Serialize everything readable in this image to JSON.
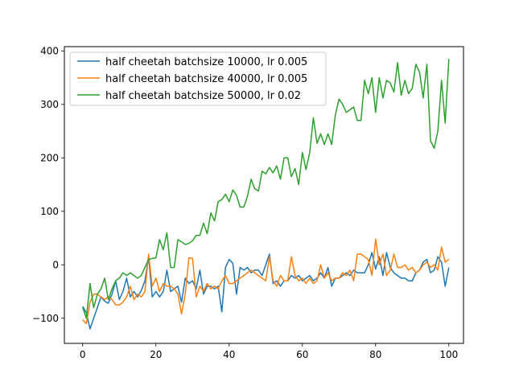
{
  "chart_data": {
    "type": "line",
    "title": "",
    "xlabel": "",
    "ylabel": "",
    "xlim": [
      -5,
      104
    ],
    "ylim": [
      -147,
      408
    ],
    "xticks": [
      0,
      20,
      40,
      60,
      80,
      100
    ],
    "yticks": [
      -100,
      0,
      100,
      200,
      300,
      400
    ],
    "grid": false,
    "legend_position": "top-left",
    "series": [
      {
        "name": "half cheetah batchsize 10000, lr 0.005",
        "color": "#1f77b4",
        "values": [
          -78,
          -90,
          -120,
          -100,
          -80,
          -60,
          -68,
          -72,
          -55,
          -30,
          -65,
          -50,
          -25,
          -60,
          -50,
          -60,
          -48,
          -30,
          15,
          -60,
          -50,
          -60,
          -50,
          -10,
          -50,
          -45,
          -40,
          -70,
          -25,
          -35,
          -30,
          -45,
          -10,
          -55,
          -40,
          -40,
          -45,
          -40,
          -88,
          -5,
          10,
          3,
          -55,
          -5,
          -10,
          -5,
          -15,
          -10,
          -10,
          -20,
          0,
          20,
          -35,
          -30,
          -40,
          -30,
          -30,
          -20,
          -25,
          -20,
          -30,
          -25,
          -20,
          -30,
          -25,
          -15,
          -25,
          -5,
          -40,
          -25,
          -25,
          -20,
          -15,
          -20,
          -10,
          -15,
          -15,
          -15,
          0,
          23,
          -8,
          15,
          -20,
          23,
          -5,
          -15,
          -20,
          -25,
          -25,
          -30,
          -30,
          -15,
          -10,
          5,
          10,
          -15,
          -10,
          15,
          5,
          -40,
          -5
        ]
      },
      {
        "name": "half cheetah batchsize 40000, lr 0.005",
        "color": "#ff7f0e",
        "values": [
          -103,
          -110,
          -70,
          -55,
          -55,
          -60,
          -65,
          -60,
          -65,
          -75,
          -75,
          -70,
          -60,
          -40,
          -65,
          -55,
          -60,
          -50,
          20,
          -40,
          -25,
          -50,
          -35,
          -40,
          -40,
          -45,
          -55,
          -92,
          -55,
          13,
          12,
          -60,
          -40,
          -50,
          -35,
          -45,
          -40,
          -45,
          -30,
          -20,
          -35,
          -35,
          -30,
          -25,
          -20,
          -15,
          -10,
          -15,
          -20,
          -25,
          -30,
          15,
          -30,
          -40,
          -20,
          -30,
          -30,
          15,
          -20,
          -30,
          -25,
          -35,
          -25,
          -35,
          -30,
          0,
          -25,
          -15,
          -30,
          -25,
          -25,
          -15,
          -20,
          -10,
          -30,
          20,
          20,
          15,
          10,
          -20,
          48,
          0,
          20,
          -20,
          -10,
          20,
          -5,
          -5,
          0,
          -10,
          -5,
          -15,
          -10,
          0,
          5,
          -5,
          0,
          -10,
          33,
          5,
          10
        ]
      },
      {
        "name": "half cheetah batchsize 50000, lr 0.02",
        "color": "#2ca02c",
        "values": [
          -80,
          -100,
          -35,
          -80,
          -55,
          -45,
          -25,
          -65,
          -45,
          -30,
          -25,
          -15,
          -20,
          -15,
          -20,
          -25,
          -20,
          -5,
          10,
          12,
          13,
          47,
          28,
          60,
          -5,
          -5,
          47,
          43,
          38,
          40,
          45,
          55,
          55,
          78,
          58,
          97,
          82,
          118,
          122,
          132,
          118,
          140,
          130,
          108,
          108,
          128,
          160,
          142,
          138,
          175,
          170,
          182,
          172,
          185,
          160,
          200,
          200,
          165,
          180,
          150,
          210,
          178,
          210,
          275,
          227,
          245,
          225,
          245,
          225,
          280,
          310,
          300,
          285,
          290,
          295,
          270,
          270,
          345,
          320,
          350,
          285,
          350,
          312,
          345,
          340,
          323,
          378,
          317,
          345,
          320,
          330,
          375,
          360,
          312,
          375,
          232,
          218,
          250,
          345,
          265,
          385
        ]
      }
    ]
  }
}
